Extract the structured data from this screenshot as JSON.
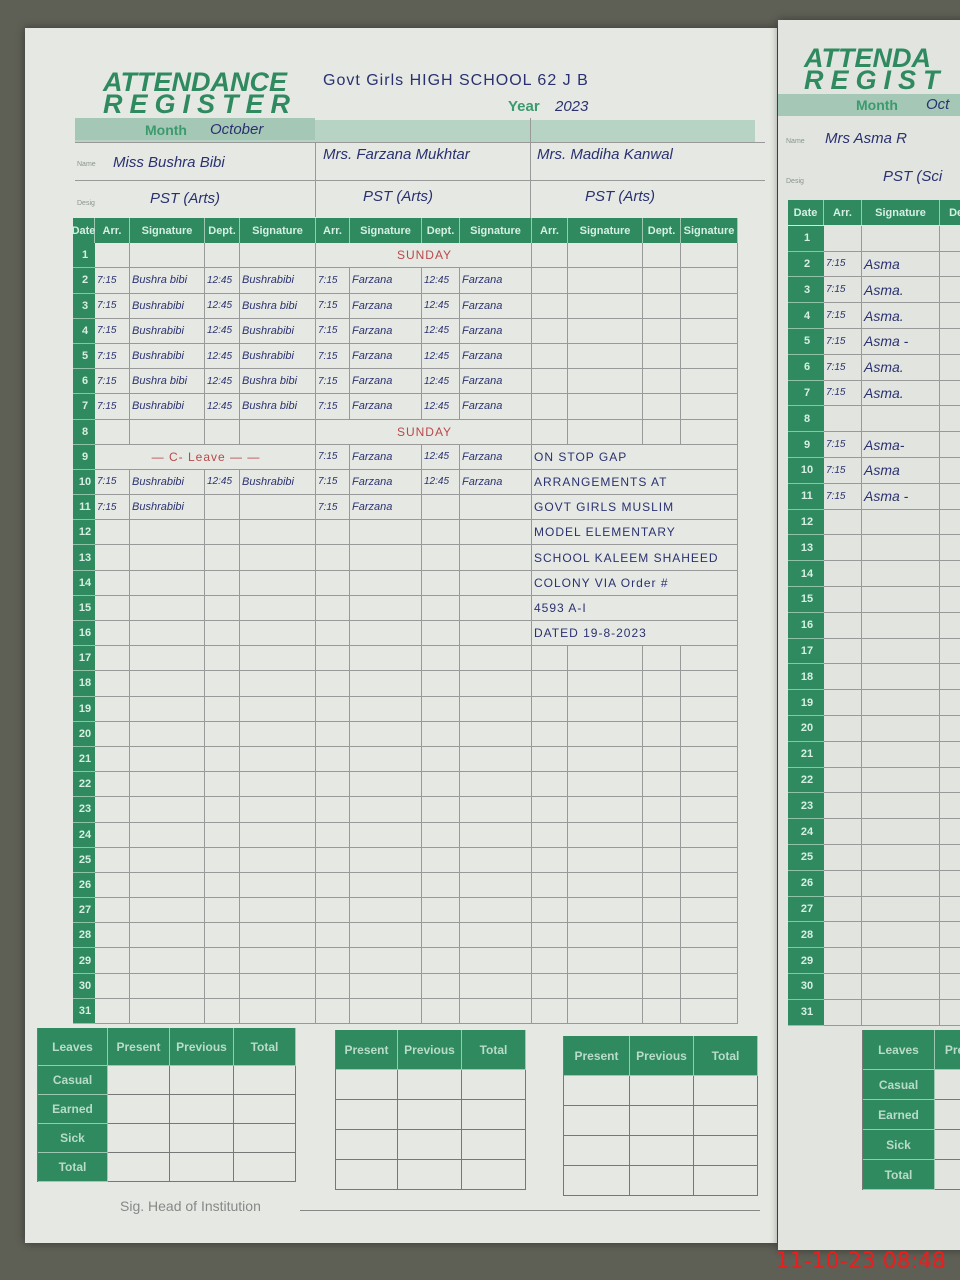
{
  "register": {
    "title_line1": "ATTENDANCE",
    "title_line2": "REGISTER",
    "school": "Govt Girls HIGH SCHOOL 62 J B",
    "year_label": "Year",
    "year": "2023",
    "month_label": "Month",
    "month": "October",
    "name_label": "Name",
    "desig_label": "Desig",
    "teachers": [
      {
        "name": "Miss Bushra Bibi",
        "designation": "PST (Arts)"
      },
      {
        "name": "Mrs. Farzana Mukhtar",
        "designation": "PST (Arts)"
      },
      {
        "name": "Mrs. Madiha Kanwal",
        "designation": "PST (Arts)"
      }
    ],
    "columns": [
      "Date",
      "Arr.",
      "Signature",
      "Dept.",
      "Signature",
      "Arr.",
      "Signature",
      "Dept.",
      "Signature",
      "Arr.",
      "Signature",
      "Dept.",
      "Signature"
    ],
    "rows": [
      {
        "date": "1",
        "t": [
          {},
          {
            "note": "SUNDAY"
          },
          {}
        ]
      },
      {
        "date": "2",
        "t": [
          {
            "arr": "7:15",
            "sig": "Bushra bibi",
            "dept": "12:45",
            "sig2": "Bushrabibi"
          },
          {
            "arr": "7:15",
            "sig": "Farzana",
            "dept": "12:45",
            "sig2": "Farzana"
          },
          {}
        ]
      },
      {
        "date": "3",
        "t": [
          {
            "arr": "7:15",
            "sig": "Bushrabibi",
            "dept": "12:45",
            "sig2": "Bushra bibi"
          },
          {
            "arr": "7:15",
            "sig": "Farzana",
            "dept": "12:45",
            "sig2": "Farzana"
          },
          {}
        ]
      },
      {
        "date": "4",
        "t": [
          {
            "arr": "7:15",
            "sig": "Bushrabibi",
            "dept": "12:45",
            "sig2": "Bushrabibi"
          },
          {
            "arr": "7:15",
            "sig": "Farzana",
            "dept": "12:45",
            "sig2": "Farzana"
          },
          {}
        ]
      },
      {
        "date": "5",
        "t": [
          {
            "arr": "7:15",
            "sig": "Bushrabibi",
            "dept": "12:45",
            "sig2": "Bushrabibi"
          },
          {
            "arr": "7:15",
            "sig": "Farzana",
            "dept": "12:45",
            "sig2": "Farzana"
          },
          {}
        ]
      },
      {
        "date": "6",
        "t": [
          {
            "arr": "7:15",
            "sig": "Bushra bibi",
            "dept": "12:45",
            "sig2": "Bushra bibi"
          },
          {
            "arr": "7:15",
            "sig": "Farzana",
            "dept": "12:45",
            "sig2": "Farzana"
          },
          {}
        ]
      },
      {
        "date": "7",
        "t": [
          {
            "arr": "7:15",
            "sig": "Bushrabibi",
            "dept": "12:45",
            "sig2": "Bushra bibi"
          },
          {
            "arr": "7:15",
            "sig": "Farzana",
            "dept": "12:45",
            "sig2": "Farzana"
          },
          {}
        ]
      },
      {
        "date": "8",
        "t": [
          {},
          {
            "note": "SUNDAY"
          },
          {}
        ]
      },
      {
        "date": "9",
        "t": [
          {
            "note": "— C- Leave — —"
          },
          {
            "arr": "7:15",
            "sig": "Farzana",
            "dept": "12:45",
            "sig2": "Farzana"
          },
          {
            "note": "ON STOP GAP"
          }
        ]
      },
      {
        "date": "10",
        "t": [
          {
            "arr": "7:15",
            "sig": "Bushrabibi",
            "dept": "12:45",
            "sig2": "Bushrabibi"
          },
          {
            "arr": "7:15",
            "sig": "Farzana",
            "dept": "12:45",
            "sig2": "Farzana"
          },
          {
            "note": "ARRANGEMENTS AT"
          }
        ]
      },
      {
        "date": "11",
        "t": [
          {
            "arr": "7:15",
            "sig": "Bushrabibi"
          },
          {
            "arr": "7:15",
            "sig": "Farzana"
          },
          {
            "note": "GOVT GIRLS MUSLIM"
          }
        ]
      },
      {
        "date": "12",
        "t": [
          {},
          {},
          {
            "note": "MODEL ELEMENTARY"
          }
        ]
      },
      {
        "date": "13",
        "t": [
          {},
          {},
          {
            "note": "SCHOOL KALEEM SHAHEED"
          }
        ]
      },
      {
        "date": "14",
        "t": [
          {},
          {},
          {
            "note": "COLONY VIA Order #"
          }
        ]
      },
      {
        "date": "15",
        "t": [
          {},
          {},
          {
            "note": "4593 A-I"
          }
        ]
      },
      {
        "date": "16",
        "t": [
          {},
          {},
          {
            "note": "DATED 19-8-2023"
          }
        ]
      },
      {
        "date": "17",
        "t": [
          {},
          {},
          {}
        ]
      },
      {
        "date": "18",
        "t": [
          {},
          {},
          {}
        ]
      },
      {
        "date": "19",
        "t": [
          {},
          {},
          {}
        ]
      },
      {
        "date": "20",
        "t": [
          {},
          {},
          {}
        ]
      },
      {
        "date": "21",
        "t": [
          {},
          {},
          {}
        ]
      },
      {
        "date": "22",
        "t": [
          {},
          {},
          {}
        ]
      },
      {
        "date": "23",
        "t": [
          {},
          {},
          {}
        ]
      },
      {
        "date": "24",
        "t": [
          {},
          {},
          {}
        ]
      },
      {
        "date": "25",
        "t": [
          {},
          {},
          {}
        ]
      },
      {
        "date": "26",
        "t": [
          {},
          {},
          {}
        ]
      },
      {
        "date": "27",
        "t": [
          {},
          {},
          {}
        ]
      },
      {
        "date": "28",
        "t": [
          {},
          {},
          {}
        ]
      },
      {
        "date": "29",
        "t": [
          {},
          {},
          {}
        ]
      },
      {
        "date": "30",
        "t": [
          {},
          {},
          {}
        ]
      },
      {
        "date": "31",
        "t": [
          {},
          {},
          {}
        ]
      }
    ],
    "summary": {
      "leaves_header": "Leaves",
      "headers": [
        "Present",
        "Previous",
        "Total"
      ],
      "leave_types": [
        "Casual",
        "Earned",
        "Sick",
        "Total"
      ]
    },
    "head_signature_label": "Sig. Head of Institution"
  },
  "right_page": {
    "title_line1": "ATTENDA",
    "title_line2": "REGIST",
    "month_label": "Month",
    "month": "Oct",
    "name_label": "Name",
    "desig_label": "Desig",
    "teacher_name": "Mrs Asma R",
    "designation": "PST (Sci",
    "columns": [
      "Date",
      "Arr.",
      "Signature",
      "Dep"
    ],
    "entries": {
      "2": "Asma",
      "3": "Asma.",
      "4": "Asma.",
      "5": "Asma -",
      "6": "Asma.",
      "7": "Asma.",
      "9": "Asma-",
      "10": "Asma",
      "11": "Asma -"
    },
    "arrival": "7:15",
    "summary_headers": [
      "Leaves",
      "Pre"
    ],
    "leave_types": [
      "Casual",
      "Earned",
      "Sick",
      "Total"
    ]
  },
  "timestamp": "11-10-23  08:48",
  "colors": {
    "green": "#2f8a60",
    "ink": "#2b3170",
    "note_red": "#b8484a",
    "timestamp": "#ee1c1c"
  }
}
